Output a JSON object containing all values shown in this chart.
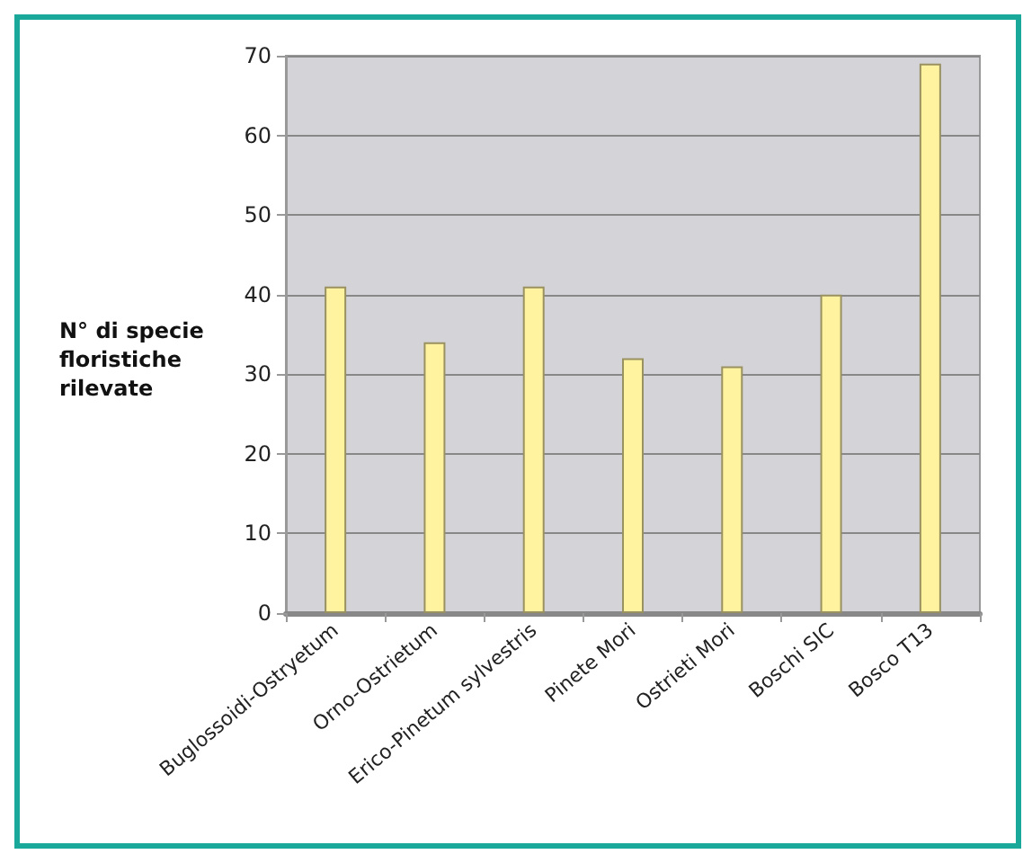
{
  "chart_data": {
    "type": "bar",
    "ylabel": "N° di specie\nfloristiche\nrilevate",
    "categories": [
      "Buglossoidi-Ostryetum",
      "Orno-Ostrietum",
      "Erico-Pinetum sylvestris",
      "Pinete Mori",
      "Ostrieti Mori",
      "Boschi SIC",
      "Bosco T13"
    ],
    "values": [
      41,
      34,
      41,
      32,
      31,
      40,
      69
    ],
    "color": "#fff3a0",
    "ylim": [
      0,
      70
    ],
    "yticks": [
      0,
      10,
      20,
      30,
      40,
      50,
      60,
      70
    ],
    "grid": "y"
  }
}
